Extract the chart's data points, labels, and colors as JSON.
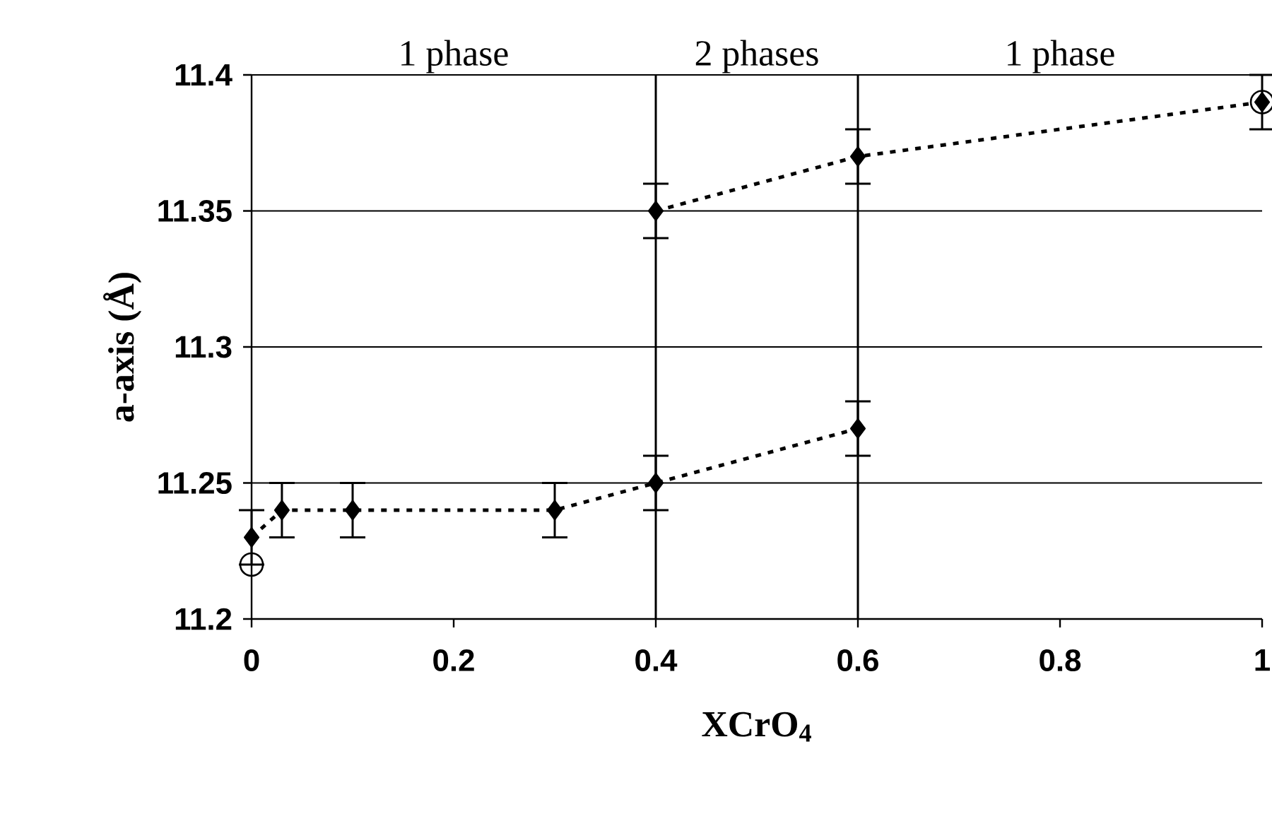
{
  "chart_data": {
    "type": "line",
    "xlabel": "XCrO$_{4}$",
    "ylabel": "a-axis (Å)",
    "xlim": [
      0,
      1
    ],
    "xticks": [
      0,
      0.2,
      0.4,
      0.6,
      0.8,
      1
    ],
    "ylim": [
      11.2,
      11.4
    ],
    "yticks": [
      11.2,
      11.25,
      11.3,
      11.35,
      11.4
    ],
    "grid": "y",
    "series": [
      {
        "color": "#000000",
        "marker": "diamond",
        "line_style": "dotted",
        "x": [
          0,
          0.03,
          0.1,
          0.3,
          0.4,
          0.6
        ],
        "values": [
          11.23,
          11.24,
          11.24,
          11.24,
          11.25,
          11.27
        ],
        "errors": [
          0.01,
          0.01,
          0.01,
          0.01,
          0.01,
          0.01
        ]
      },
      {
        "color": "#000000",
        "marker": "diamond",
        "line_style": "dotted",
        "x": [
          0.4,
          0.6,
          1
        ],
        "values": [
          11.35,
          11.37,
          11.39
        ],
        "errors": [
          0.01,
          0.01,
          0.01
        ]
      },
      {
        "type": "scatter",
        "color": "#000000",
        "marker": "circle",
        "x": [
          0,
          1
        ],
        "values": [
          11.22,
          11.39
        ]
      }
    ],
    "ref_lines": [
      {
        "axis": "x",
        "value": 0.4,
        "color": "#000000"
      },
      {
        "axis": "x",
        "value": 0.6,
        "color": "#000000"
      }
    ],
    "annotations": [
      "1 phase",
      "2 phases",
      "1 phase"
    ]
  }
}
